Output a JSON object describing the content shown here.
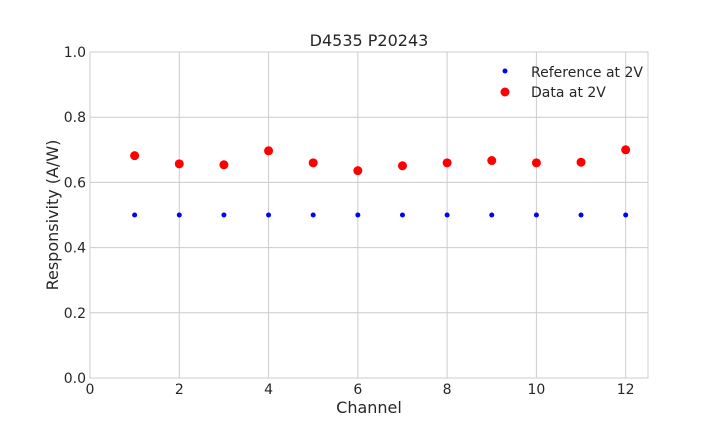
{
  "chart_data": {
    "type": "scatter",
    "title": "D4535 P20243",
    "xlabel": "Channel",
    "ylabel": "Responsivity (A/W)",
    "xlim": [
      0,
      12.5
    ],
    "ylim": [
      0,
      1.0
    ],
    "xticks": [
      "0",
      "2",
      "4",
      "6",
      "8",
      "10",
      "12"
    ],
    "yticks": [
      "0.0",
      "0.2",
      "0.4",
      "0.6",
      "0.8",
      "1.0"
    ],
    "grid": true,
    "legend_position": "top-right",
    "series": [
      {
        "name": "Reference at 2V",
        "color": "#0000ff",
        "marker_size": "small",
        "x": [
          1,
          2,
          3,
          4,
          5,
          6,
          7,
          8,
          9,
          10,
          11,
          12
        ],
        "y": [
          0.5,
          0.5,
          0.5,
          0.5,
          0.5,
          0.5,
          0.5,
          0.5,
          0.5,
          0.5,
          0.5,
          0.5
        ]
      },
      {
        "name": "Data at 2V",
        "color": "#ff0000",
        "marker_size": "large",
        "x": [
          1,
          2,
          3,
          4,
          5,
          6,
          7,
          8,
          9,
          10,
          11,
          12
        ],
        "y": [
          0.682,
          0.657,
          0.654,
          0.697,
          0.66,
          0.636,
          0.651,
          0.66,
          0.667,
          0.66,
          0.662,
          0.7
        ]
      }
    ]
  }
}
